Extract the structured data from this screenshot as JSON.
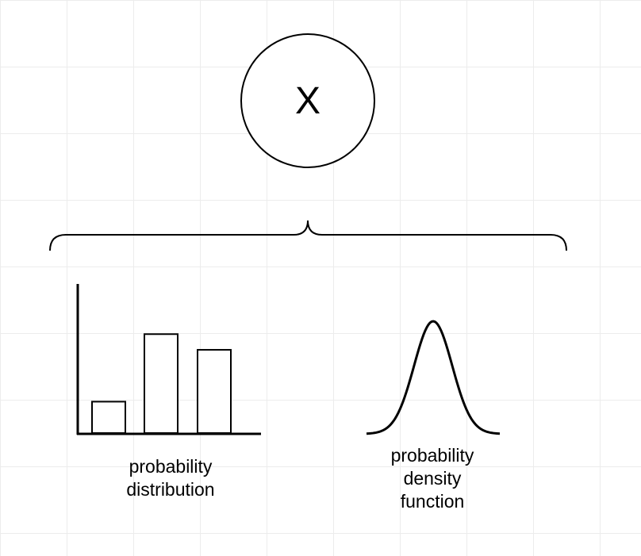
{
  "variable": {
    "label": "X"
  },
  "left": {
    "caption_lines": [
      "probability",
      "distribution"
    ],
    "bars": [
      0.2,
      0.63,
      0.53
    ]
  },
  "right": {
    "caption_lines": [
      "probability",
      "density",
      "function"
    ]
  },
  "colors": {
    "stroke": "#000000",
    "grid": "#ececec",
    "background": "#ffffff"
  }
}
